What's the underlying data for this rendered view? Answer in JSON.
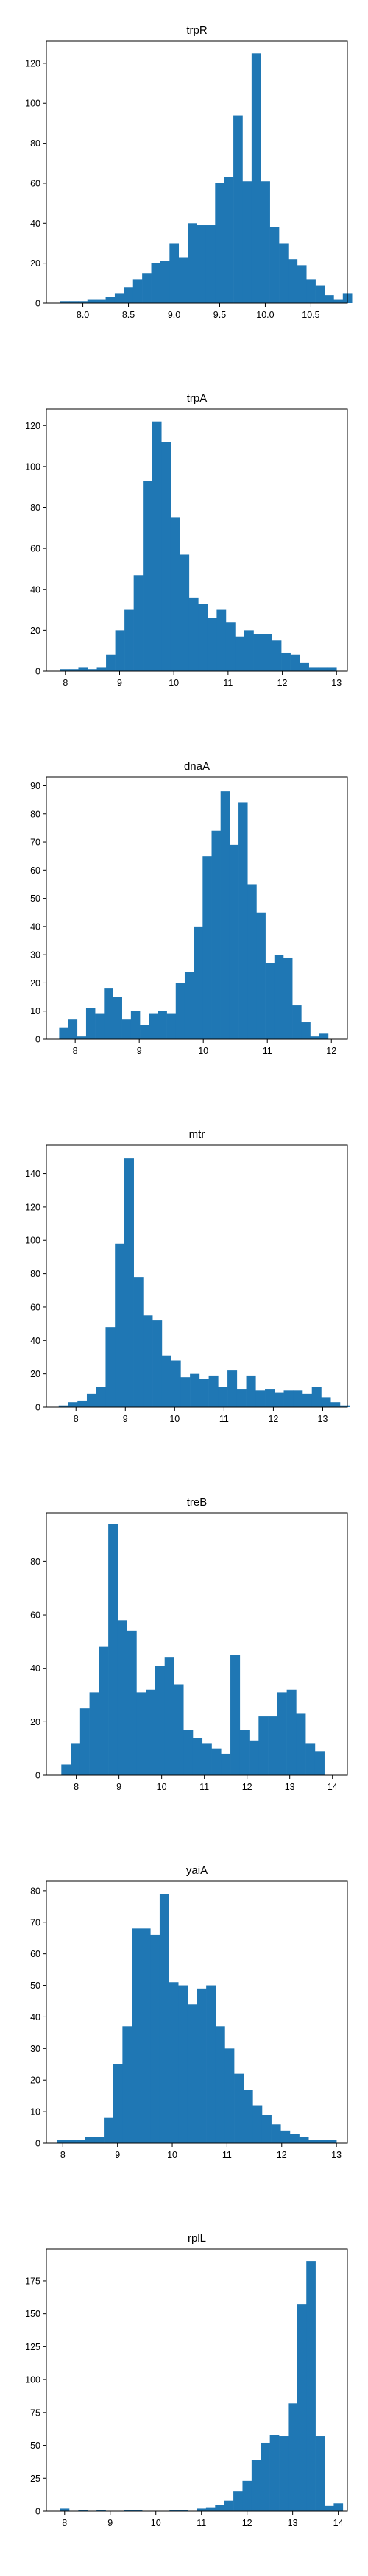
{
  "chart_data": [
    {
      "type": "bar",
      "title": "trpR",
      "xlabel": "",
      "ylabel": "",
      "xlim": [
        7.6,
        10.9
      ],
      "ylim": [
        0,
        131
      ],
      "xticks": [
        8.0,
        8.5,
        9.0,
        9.5,
        10.0,
        10.5
      ],
      "xtick_labels": [
        "8.0",
        "8.5",
        "9.0",
        "9.5",
        "10.0",
        "10.5"
      ],
      "yticks": [
        0,
        20,
        40,
        60,
        80,
        100,
        120
      ],
      "bin_start": 7.75,
      "bin_width": 0.1,
      "values": [
        1,
        1,
        1,
        2,
        2,
        3,
        5,
        8,
        12,
        15,
        20,
        21,
        30,
        23,
        40,
        39,
        39,
        60,
        63,
        94,
        61,
        125,
        61,
        38,
        30,
        22,
        19,
        12,
        9,
        4,
        2,
        5
      ],
      "color": "#1f77b4"
    },
    {
      "type": "bar",
      "title": "trpA",
      "xlabel": "",
      "ylabel": "",
      "xlim": [
        7.65,
        13.2
      ],
      "ylim": [
        0,
        128
      ],
      "xticks": [
        8,
        9,
        10,
        11,
        12,
        13
      ],
      "xtick_labels": [
        "8",
        "9",
        "10",
        "11",
        "12",
        "13"
      ],
      "yticks": [
        0,
        20,
        40,
        60,
        80,
        100,
        120
      ],
      "bin_start": 7.9,
      "bin_width": 0.17,
      "values": [
        1,
        1,
        2,
        1,
        2,
        8,
        20,
        30,
        47,
        93,
        122,
        112,
        75,
        57,
        36,
        33,
        26,
        30,
        24,
        17,
        20,
        18,
        18,
        15,
        9,
        8,
        4,
        2,
        2,
        2
      ],
      "color": "#1f77b4"
    },
    {
      "type": "bar",
      "title": "dnaA",
      "xlabel": "",
      "ylabel": "",
      "xlim": [
        7.55,
        12.25
      ],
      "ylim": [
        0,
        93
      ],
      "xticks": [
        8,
        9,
        10,
        11,
        12
      ],
      "xtick_labels": [
        "8",
        "9",
        "10",
        "11",
        "12"
      ],
      "yticks": [
        0,
        10,
        20,
        30,
        40,
        50,
        60,
        70,
        80,
        90
      ],
      "bin_start": 7.75,
      "bin_width": 0.14,
      "values": [
        4,
        7,
        1,
        11,
        9,
        18,
        15,
        7,
        10,
        5,
        9,
        10,
        9,
        20,
        24,
        40,
        65,
        74,
        88,
        69,
        84,
        55,
        45,
        27,
        30,
        29,
        12,
        6,
        1,
        2
      ],
      "color": "#1f77b4"
    },
    {
      "type": "bar",
      "title": "mtr",
      "xlabel": "",
      "ylabel": "",
      "xlim": [
        7.4,
        13.5
      ],
      "ylim": [
        0,
        157
      ],
      "xticks": [
        8,
        9,
        10,
        11,
        12,
        13
      ],
      "xtick_labels": [
        "8",
        "9",
        "10",
        "11",
        "12",
        "13"
      ],
      "yticks": [
        0,
        20,
        40,
        60,
        80,
        100,
        120,
        140
      ],
      "bin_start": 7.65,
      "bin_width": 0.19,
      "values": [
        1,
        3,
        4,
        8,
        12,
        48,
        98,
        149,
        78,
        55,
        52,
        31,
        28,
        18,
        20,
        17,
        19,
        12,
        22,
        11,
        19,
        10,
        11,
        9,
        10,
        10,
        8,
        12,
        6,
        3,
        1
      ],
      "color": "#1f77b4"
    },
    {
      "type": "bar",
      "title": "treB",
      "xlabel": "",
      "ylabel": "",
      "xlim": [
        7.3,
        14.35
      ],
      "ylim": [
        0,
        98
      ],
      "xticks": [
        8,
        9,
        10,
        11,
        12,
        13,
        14
      ],
      "xtick_labels": [
        "8",
        "9",
        "10",
        "11",
        "12",
        "13",
        "14"
      ],
      "yticks": [
        0,
        20,
        40,
        60,
        80
      ],
      "bin_start": 7.65,
      "bin_width": 0.22,
      "values": [
        4,
        12,
        25,
        31,
        48,
        94,
        58,
        54,
        31,
        32,
        41,
        44,
        34,
        17,
        14,
        12,
        10,
        8,
        45,
        17,
        13,
        22,
        22,
        31,
        32,
        23,
        12,
        9
      ],
      "color": "#1f77b4"
    },
    {
      "type": "bar",
      "title": "yaiA",
      "xlabel": "",
      "ylabel": "",
      "xlim": [
        7.7,
        13.2
      ],
      "ylim": [
        0,
        83
      ],
      "xticks": [
        8,
        9,
        10,
        11,
        12,
        13
      ],
      "xtick_labels": [
        "8",
        "9",
        "10",
        "11",
        "12",
        "13"
      ],
      "yticks": [
        0,
        10,
        20,
        30,
        40,
        50,
        60,
        70,
        80
      ],
      "bin_start": 7.9,
      "bin_width": 0.17,
      "values": [
        1,
        1,
        1,
        2,
        2,
        8,
        25,
        37,
        68,
        68,
        66,
        79,
        51,
        50,
        44,
        49,
        50,
        37,
        30,
        22,
        17,
        12,
        9,
        6,
        4,
        3,
        2,
        1,
        1,
        1
      ],
      "color": "#1f77b4"
    },
    {
      "type": "bar",
      "title": "rplL",
      "xlabel": "",
      "ylabel": "",
      "xlim": [
        7.6,
        14.2
      ],
      "ylim": [
        0,
        199
      ],
      "xticks": [
        8,
        9,
        10,
        11,
        12,
        13,
        14
      ],
      "xtick_labels": [
        "8",
        "9",
        "10",
        "11",
        "12",
        "13",
        "14"
      ],
      "yticks": [
        0,
        25,
        50,
        75,
        100,
        125,
        150,
        175
      ],
      "bin_start": 7.9,
      "bin_width": 0.2,
      "values": [
        2,
        0,
        1,
        0,
        1,
        0,
        0,
        1,
        1,
        0,
        0,
        0,
        1,
        1,
        0,
        2,
        3,
        5,
        8,
        15,
        23,
        39,
        52,
        58,
        57,
        82,
        157,
        190,
        57,
        4,
        6
      ],
      "color": "#1f77b4"
    }
  ]
}
